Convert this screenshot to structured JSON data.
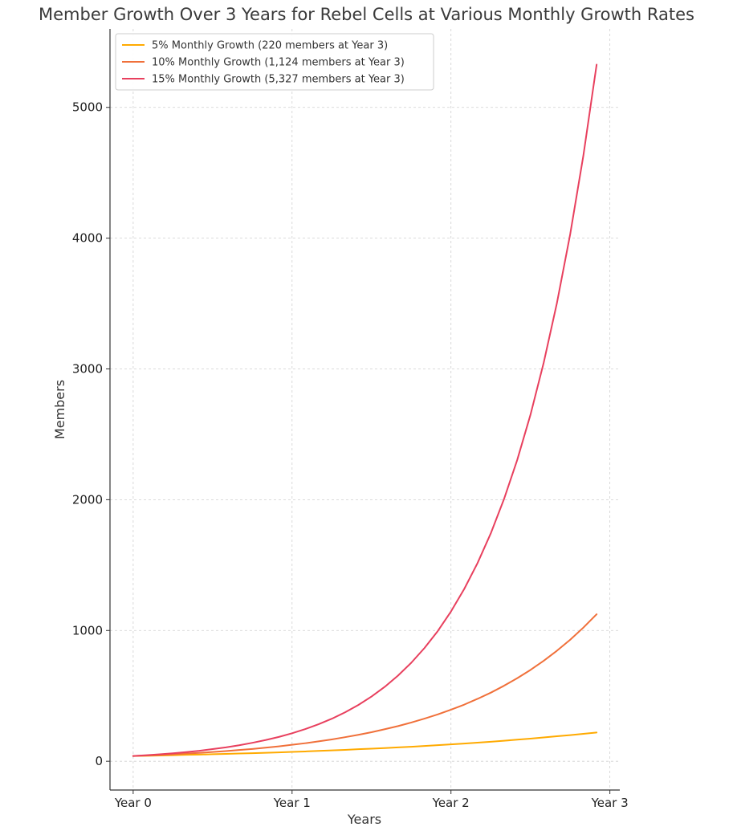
{
  "chart_data": {
    "type": "line",
    "title": "Member Growth Over 3 Years for Rebel Cells at Various Monthly Growth Rates",
    "xlabel": "Years",
    "ylabel": "Members",
    "x_ticks": [
      {
        "value": 0,
        "label": "Year 0"
      },
      {
        "value": 12,
        "label": "Year 1"
      },
      {
        "value": 24,
        "label": "Year 2"
      },
      {
        "value": 36,
        "label": "Year 3"
      }
    ],
    "y_ticks": [
      0,
      1000,
      2000,
      3000,
      4000,
      5000
    ],
    "xlim": [
      -1.75,
      36.75
    ],
    "ylim": [
      -220,
      5600
    ],
    "grid": true,
    "legend_position": "top-left",
    "start_members": 40,
    "x": [
      0,
      1,
      2,
      3,
      4,
      5,
      6,
      7,
      8,
      9,
      10,
      11,
      12,
      13,
      14,
      15,
      16,
      17,
      18,
      19,
      20,
      21,
      22,
      23,
      24,
      25,
      26,
      27,
      28,
      29,
      30,
      31,
      32,
      33,
      34,
      35
    ],
    "series": [
      {
        "name": "5% Monthly Growth (220 members at Year 3)",
        "color": "#ffaa00",
        "values": [
          40,
          42,
          44,
          46,
          49,
          51,
          54,
          56,
          59,
          62,
          65,
          68,
          72,
          75,
          79,
          83,
          87,
          92,
          96,
          101,
          106,
          111,
          117,
          123,
          129,
          135,
          142,
          149,
          157,
          165,
          173,
          182,
          191,
          200,
          210,
          220
        ]
      },
      {
        "name": "10% Monthly Growth (1,124 members at Year 3)",
        "color": "#f0703a",
        "values": [
          40,
          44,
          48,
          53,
          59,
          64,
          71,
          78,
          86,
          94,
          104,
          114,
          126,
          138,
          152,
          167,
          184,
          202,
          222,
          245,
          269,
          296,
          326,
          358,
          394,
          433,
          477,
          524,
          577,
          635,
          698,
          768,
          845,
          929,
          1022,
          1124
        ]
      },
      {
        "name": "15% Monthly Growth (5,327 members at Year 3)",
        "color": "#e8405e",
        "values": [
          40,
          46,
          53,
          61,
          70,
          80,
          93,
          106,
          122,
          141,
          162,
          186,
          214,
          246,
          283,
          325,
          374,
          430,
          495,
          569,
          655,
          753,
          866,
          995,
          1145,
          1317,
          1514,
          1741,
          2003,
          2303,
          2648,
          3046,
          3503,
          4028,
          4632,
          5327
        ]
      }
    ]
  }
}
